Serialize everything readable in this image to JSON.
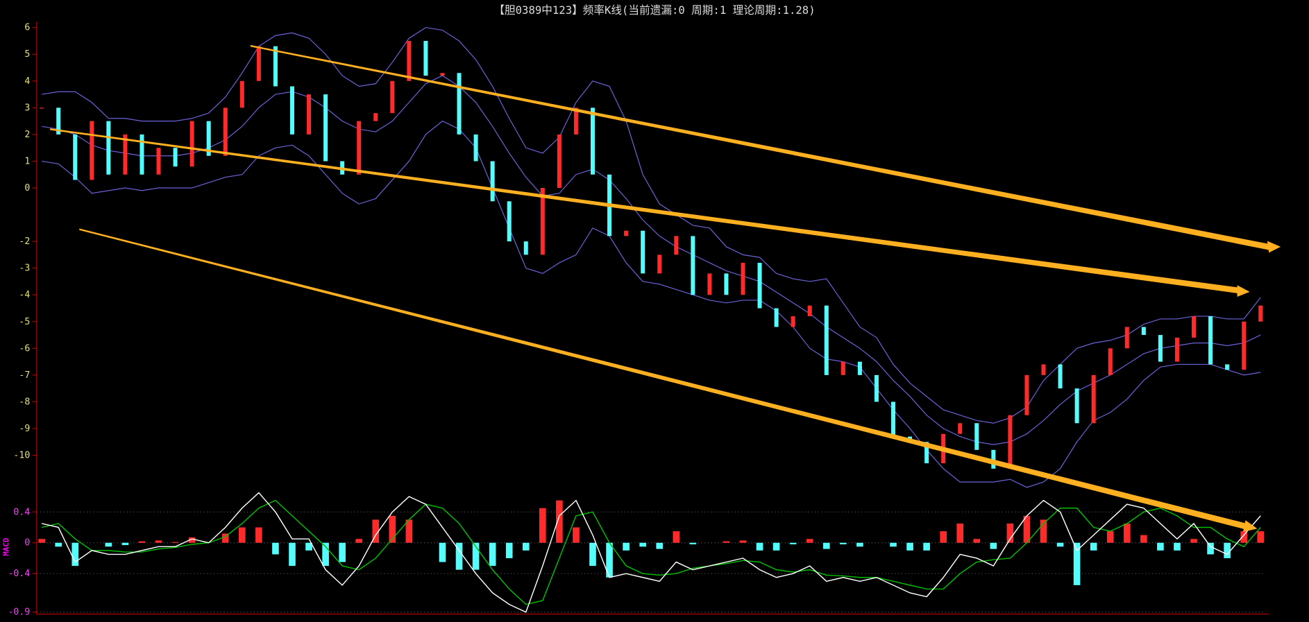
{
  "chart_data": [
    {
      "type": "candlestick",
      "title": "【胆0389中123】频率K线(当前遗漏:0 周期:1 理论周期:1.28)",
      "ylim": [
        -11.3,
        6.2
      ],
      "yticks": [
        6,
        5,
        4,
        3,
        2,
        1,
        0,
        -2,
        -3,
        -4,
        -5,
        -6,
        -7,
        -8,
        -9,
        -10
      ],
      "up_color": "#ff2a2a",
      "down_color": "#54fcfc",
      "close": [
        3,
        2,
        0.3,
        2.5,
        0.5,
        2,
        0.5,
        1.5,
        0.8,
        2.5,
        1.2,
        3,
        4,
        5.3,
        3.8,
        2,
        3.5,
        1,
        0.5,
        2.5,
        2.8,
        4,
        5.5,
        4.2,
        4.3,
        2,
        1,
        -0.5,
        -2,
        -2.5,
        0,
        2,
        3,
        0.5,
        -1.8,
        -1.6,
        -3.2,
        -2.5,
        -1.8,
        -4,
        -3.2,
        -4,
        -2.8,
        -4.5,
        -5.2,
        -4.8,
        -4.4,
        -7,
        -6.5,
        -7,
        -8,
        -9.3,
        -9.5,
        -10.3,
        -9.2,
        -8.8,
        -9.8,
        -10.5,
        -8.5,
        -7,
        -6.6,
        -7.5,
        -8.8,
        -7,
        -6,
        -5.2,
        -5.5,
        -6.5,
        -5.6,
        -4.8,
        -6.6,
        -6.8,
        -5,
        -4.4
      ],
      "bands": {
        "color": "#6b63d8",
        "upper": [
          3.5,
          3.6,
          3.6,
          3.2,
          2.6,
          2.6,
          2.5,
          2.5,
          2.5,
          2.6,
          2.8,
          3.4,
          4.3,
          5.3,
          5.7,
          5.8,
          5.6,
          5,
          4.2,
          3.8,
          3.9,
          4.7,
          5.6,
          6,
          5.9,
          5.5,
          4.8,
          3.8,
          2.6,
          1.5,
          1.3,
          1.9,
          3.2,
          4,
          3.8,
          2.5,
          0.5,
          -0.6,
          -1,
          -1.4,
          -1.5,
          -2.2,
          -2.5,
          -2.6,
          -3.2,
          -3.4,
          -3.5,
          -3.4,
          -4.3,
          -5.2,
          -5.6,
          -6.6,
          -7.3,
          -7.8,
          -8.3,
          -8.5,
          -8.7,
          -8.8,
          -8.6,
          -8.2,
          -7.2,
          -6.6,
          -6,
          -5.8,
          -5.7,
          -5.5,
          -5.1,
          -4.9,
          -4.9,
          -4.8,
          -4.8,
          -4.9,
          -4.9,
          -4.1
        ],
        "mid": [
          2.3,
          2.2,
          2,
          1.6,
          1.4,
          1.3,
          1.2,
          1.2,
          1.2,
          1.3,
          1.5,
          1.8,
          2.3,
          3,
          3.5,
          3.6,
          3.4,
          3,
          2.5,
          2.2,
          2.1,
          2.5,
          3.2,
          3.9,
          4.2,
          3.8,
          3.2,
          2.3,
          1.3,
          0.4,
          -0.3,
          -0.2,
          0.5,
          0.7,
          0.3,
          -0.4,
          -1.2,
          -1.8,
          -2.2,
          -2.5,
          -2.8,
          -3.1,
          -3.3,
          -3.5,
          -3.9,
          -4.3,
          -4.7,
          -5.2,
          -5.6,
          -6,
          -6.5,
          -7.2,
          -7.8,
          -8.5,
          -9,
          -9.3,
          -9.5,
          -9.6,
          -9.5,
          -9.2,
          -8.7,
          -8.1,
          -7.6,
          -7.3,
          -7,
          -6.6,
          -6.2,
          -6,
          -5.9,
          -5.8,
          -5.8,
          -5.9,
          -5.8,
          -5.5
        ],
        "lower": [
          1,
          0.9,
          0.4,
          -0.2,
          -0.1,
          0,
          -0.1,
          0,
          0,
          0,
          0.2,
          0.4,
          0.5,
          1.2,
          1.5,
          1.6,
          1.2,
          0.5,
          -0.2,
          -0.6,
          -0.4,
          0.3,
          1,
          2,
          2.5,
          2.2,
          1.5,
          0,
          -1.5,
          -3,
          -3.2,
          -2.8,
          -2.5,
          -1.5,
          -1.8,
          -2.8,
          -3.5,
          -3.6,
          -3.8,
          -4,
          -4.2,
          -4.3,
          -4.2,
          -4.2,
          -4.6,
          -5.2,
          -6,
          -6.4,
          -6.5,
          -6.7,
          -7.5,
          -8.3,
          -9,
          -9.8,
          -10.5,
          -11,
          -11,
          -11,
          -10.9,
          -11.2,
          -11,
          -10.5,
          -9.5,
          -8.7,
          -8.4,
          -7.9,
          -7.2,
          -6.7,
          -6.6,
          -6.6,
          -6.6,
          -6.8,
          -7,
          -6.9
        ]
      }
    },
    {
      "type": "macd",
      "y_label": "MACD",
      "ylim": [
        -0.92,
        0.66
      ],
      "yticks": [
        0.4,
        0,
        -0.4,
        -0.9
      ],
      "grid": true,
      "dif": {
        "color": "#ffffff",
        "values": [
          0.25,
          0.2,
          -0.25,
          -0.1,
          -0.15,
          -0.15,
          -0.1,
          -0.05,
          -0.05,
          0.05,
          0,
          0.2,
          0.45,
          0.65,
          0.4,
          0.05,
          0.05,
          -0.35,
          -0.55,
          -0.3,
          0.1,
          0.4,
          0.6,
          0.5,
          0.2,
          -0.1,
          -0.4,
          -0.65,
          -0.8,
          -0.9,
          -0.3,
          0.35,
          0.55,
          0.1,
          -0.45,
          -0.4,
          -0.45,
          -0.5,
          -0.25,
          -0.35,
          -0.3,
          -0.25,
          -0.2,
          -0.35,
          -0.45,
          -0.4,
          -0.3,
          -0.5,
          -0.45,
          -0.5,
          -0.45,
          -0.55,
          -0.65,
          -0.7,
          -0.45,
          -0.15,
          -0.2,
          -0.3,
          0.05,
          0.35,
          0.55,
          0.4,
          -0.1,
          0.1,
          0.3,
          0.5,
          0.45,
          0.25,
          0.05,
          0.25,
          -0.05,
          -0.15,
          0.1,
          0.35
        ]
      },
      "dea": {
        "color": "#00c000",
        "values": [
          0.2,
          0.25,
          0.05,
          -0.1,
          -0.1,
          -0.12,
          -0.12,
          -0.08,
          -0.06,
          -0.02,
          0,
          0.08,
          0.25,
          0.45,
          0.55,
          0.35,
          0.15,
          -0.05,
          -0.3,
          -0.35,
          -0.2,
          0.05,
          0.3,
          0.5,
          0.45,
          0.25,
          -0.05,
          -0.35,
          -0.6,
          -0.8,
          -0.75,
          -0.2,
          0.35,
          0.4,
          0,
          -0.3,
          -0.4,
          -0.42,
          -0.4,
          -0.33,
          -0.3,
          -0.27,
          -0.23,
          -0.25,
          -0.35,
          -0.38,
          -0.35,
          -0.42,
          -0.43,
          -0.45,
          -0.45,
          -0.5,
          -0.55,
          -0.6,
          -0.6,
          -0.4,
          -0.25,
          -0.22,
          -0.2,
          0,
          0.25,
          0.45,
          0.45,
          0.2,
          0.15,
          0.25,
          0.4,
          0.45,
          0.35,
          0.2,
          0.2,
          0.05,
          -0.05,
          0.2
        ]
      },
      "histogram": {
        "up_color": "#ff2a2a",
        "down_color": "#54fcfc",
        "values": [
          0.05,
          -0.05,
          -0.3,
          0,
          -0.05,
          -0.03,
          0.02,
          0.03,
          0.01,
          0.07,
          0,
          0.12,
          0.2,
          0.2,
          -0.15,
          -0.3,
          -0.1,
          -0.3,
          -0.25,
          0.05,
          0.3,
          0.35,
          0.3,
          0,
          -0.25,
          -0.35,
          -0.35,
          -0.3,
          -0.2,
          -0.1,
          0.45,
          0.55,
          0.2,
          -0.3,
          -0.45,
          -0.1,
          -0.05,
          -0.08,
          0.15,
          -0.02,
          0,
          0.02,
          0.03,
          -0.1,
          -0.1,
          -0.02,
          0.05,
          -0.08,
          -0.02,
          -0.05,
          0,
          -0.05,
          -0.1,
          -0.1,
          0.15,
          0.25,
          0.05,
          -0.08,
          0.25,
          0.35,
          0.3,
          -0.05,
          -0.55,
          -0.1,
          0.15,
          0.25,
          0.1,
          -0.1,
          -0.1,
          0.05,
          -0.15,
          -0.2,
          0.15,
          0.15
        ]
      }
    }
  ]
}
